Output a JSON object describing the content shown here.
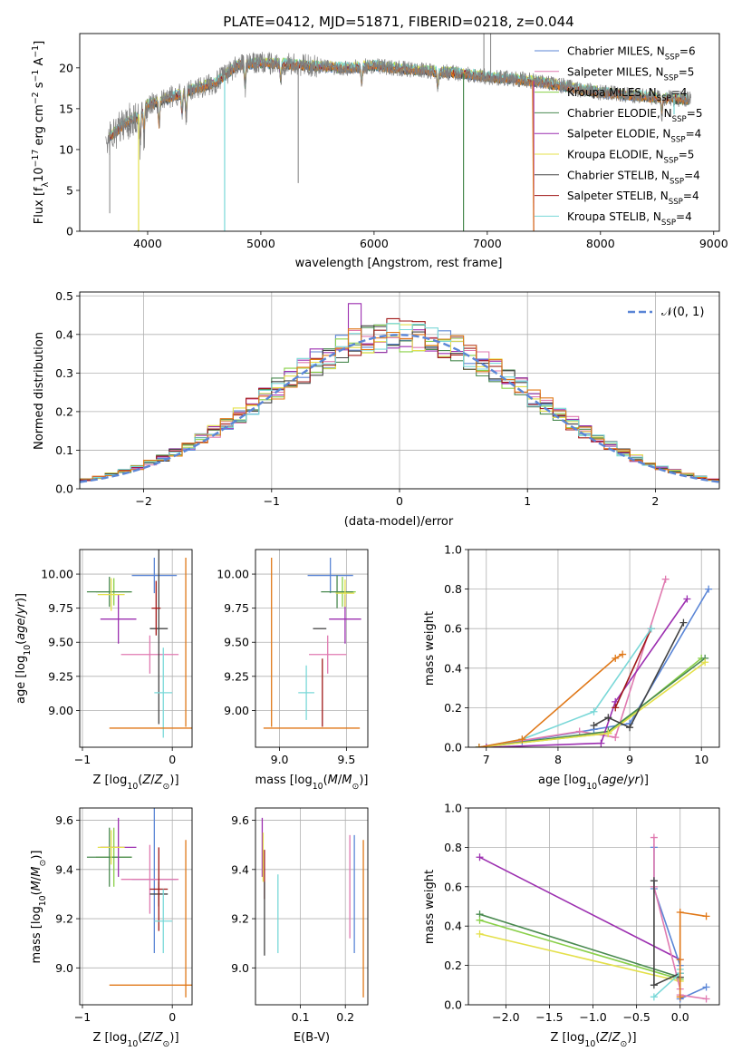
{
  "figure_title": "PLATE=0412, MJD=51871, FIBERID=0218, z=0.044",
  "colors": {
    "Chabrier MILES": "#5b86d6",
    "Salpeter MILES": "#e07ab0",
    "Kroupa MILES": "#8ad04a",
    "Chabrier ELODIE": "#4a8a50",
    "Salpeter ELODIE": "#9c2fb0",
    "Kroupa ELODIE": "#e4e04a",
    "Chabrier STELIB": "#444444",
    "Salpeter STELIB": "#a01818",
    "Kroupa STELIB": "#7ad8d8",
    "data": "#808080",
    "orange": "#e07818",
    "normal": "#5b86d6"
  },
  "chart_data": [
    {
      "id": "spectrum",
      "type": "line",
      "title": "PLATE=0412, MJD=51871, FIBERID=0218, z=0.044",
      "xlabel": "wavelength [Angstrom, rest frame]",
      "ylabel": "Flux [f_λ 10^-17 erg cm^-2 s^-1 A^-1]",
      "xlim": [
        3400,
        9050
      ],
      "ylim": [
        0,
        24.2
      ],
      "xticks": [
        4000,
        5000,
        6000,
        7000,
        8000,
        9000
      ],
      "yticks": [
        0,
        5,
        10,
        15,
        20
      ],
      "legend_position": "top-right",
      "legend": [
        {
          "base": "Chabrier MILES, N",
          "sub": "SSP",
          "tail": "=6"
        },
        {
          "base": "Salpeter MILES, N",
          "sub": "SSP",
          "tail": "=5"
        },
        {
          "base": "Kroupa MILES, N",
          "sub": "SSP",
          "tail": "=4"
        },
        {
          "base": "Chabrier ELODIE, N",
          "sub": "SSP",
          "tail": "=5"
        },
        {
          "base": "Salpeter ELODIE, N",
          "sub": "SSP",
          "tail": "=4"
        },
        {
          "base": "Kroupa ELODIE, N",
          "sub": "SSP",
          "tail": "=5"
        },
        {
          "base": "Chabrier STELIB, N",
          "sub": "SSP",
          "tail": "=4"
        },
        {
          "base": "Salpeter STELIB, N",
          "sub": "SSP",
          "tail": "=4"
        },
        {
          "base": "Kroupa STELIB, N",
          "sub": "SSP",
          "tail": "=4"
        }
      ],
      "continuum": [
        [
          3640,
          11.2
        ],
        [
          3700,
          12.0
        ],
        [
          3800,
          13.2
        ],
        [
          3900,
          14.0
        ],
        [
          4000,
          15.5
        ],
        [
          4200,
          16.4
        ],
        [
          4400,
          17.4
        ],
        [
          4600,
          18.2
        ],
        [
          4800,
          20.4
        ],
        [
          5000,
          20.6
        ],
        [
          5200,
          20.5
        ],
        [
          5500,
          20.2
        ],
        [
          5800,
          20.0
        ],
        [
          6000,
          20.3
        ],
        [
          6300,
          19.8
        ],
        [
          6500,
          19.6
        ],
        [
          6800,
          19.3
        ],
        [
          7000,
          18.9
        ],
        [
          7200,
          18.7
        ],
        [
          7400,
          18.4
        ],
        [
          7600,
          18.0
        ],
        [
          7800,
          17.4
        ],
        [
          8000,
          17.0
        ],
        [
          8300,
          16.6
        ],
        [
          8600,
          16.3
        ],
        [
          8800,
          16.1
        ]
      ],
      "absorption_lines": [
        [
          3934,
          3.5
        ],
        [
          3968,
          3.0
        ],
        [
          4101,
          3.0
        ],
        [
          4304,
          2.5
        ],
        [
          4340,
          3.0
        ],
        [
          4861,
          2.5
        ],
        [
          5175,
          2.0
        ],
        [
          5890,
          2.0
        ],
        [
          6563,
          2.0
        ],
        [
          8542,
          2.0
        ]
      ],
      "dropouts": [
        [
          3920,
          0
        ],
        [
          4680,
          0
        ],
        [
          6790,
          0
        ],
        [
          7410,
          0
        ],
        [
          8650,
          14.3
        ]
      ],
      "data_spikes": [
        [
          3665,
          2.2
        ],
        [
          5330,
          5.9
        ],
        [
          6970,
          24.2
        ],
        [
          7030,
          24.2
        ]
      ]
    },
    {
      "id": "residual_hist",
      "type": "line",
      "xlabel": "(data-model)/error",
      "ylabel": "Normed distribution",
      "xlim": [
        -2.5,
        2.5
      ],
      "ylim": [
        0,
        0.51
      ],
      "xticks": [
        -2,
        -1,
        0,
        1,
        2
      ],
      "yticks": [
        0.0,
        0.1,
        0.2,
        0.3,
        0.4,
        0.5
      ],
      "bin_width": 0.1,
      "legend_position": "top-right",
      "legend_label": "𝒩(0, 1)",
      "normal_curve": {
        "mean": 0,
        "sigma": 1
      }
    },
    {
      "id": "age_vs_Z",
      "type": "scatter",
      "xlabel": "Z [log10(Z/Z⊙)]",
      "ylabel": "age  [log10(age/yr)]",
      "xlim": [
        -1.03,
        0.22
      ],
      "ylim": [
        8.73,
        10.18
      ],
      "xticks": [
        -1,
        0
      ],
      "yticks": [
        9.0,
        9.25,
        9.5,
        9.75,
        10.0
      ],
      "points": [
        {
          "model": "Chabrier MILES",
          "x": -0.2,
          "y": 9.99,
          "xerr": 0.25,
          "yerr": 0.13
        },
        {
          "model": "Salpeter MILES",
          "x": -0.25,
          "y": 9.41,
          "xerr": 0.32,
          "yerr": 0.14
        },
        {
          "model": "Kroupa MILES",
          "x": -0.65,
          "y": 9.87,
          "xerr": 0.2,
          "yerr": 0.1
        },
        {
          "model": "Chabrier ELODIE",
          "x": -0.7,
          "y": 9.87,
          "xerr": 0.25,
          "yerr": 0.11
        },
        {
          "model": "Salpeter ELODIE",
          "x": -0.6,
          "y": 9.67,
          "xerr": 0.2,
          "yerr": 0.18
        },
        {
          "model": "Kroupa ELODIE",
          "x": -0.68,
          "y": 9.85,
          "xerr": 0.15,
          "yerr": 0.12
        },
        {
          "model": "Chabrier STELIB",
          "x": -0.15,
          "y": 9.6,
          "xerr": 0.1,
          "yerr": 0.7
        },
        {
          "model": "Salpeter STELIB",
          "x": -0.18,
          "y": 9.75,
          "xerr": 0.05,
          "yerr": 0.2
        },
        {
          "model": "Kroupa STELIB",
          "x": -0.1,
          "y": 9.13,
          "xerr": 0.1,
          "yerr": 0.33
        },
        {
          "model": "orange",
          "x": 0.15,
          "y": 8.87,
          "xerr": 0.85,
          "yerr": 0.0
        },
        {
          "model": "orange",
          "x": 0.15,
          "y": 9.5,
          "xerr": 0.0,
          "yerr": 0.62
        }
      ]
    },
    {
      "id": "age_vs_mass",
      "type": "scatter",
      "xlabel": "mass [log10(M/M⊙)]",
      "ylabel": "",
      "xlim": [
        8.82,
        9.66
      ],
      "ylim": [
        8.73,
        10.18
      ],
      "xticks": [
        9.0,
        9.5
      ],
      "yticks": [
        9.0,
        9.25,
        9.5,
        9.75,
        10.0
      ],
      "points": [
        {
          "model": "Chabrier MILES",
          "x": 9.38,
          "y": 9.99,
          "xerr": 0.17,
          "yerr": 0.13
        },
        {
          "model": "Salpeter MILES",
          "x": 9.36,
          "y": 9.41,
          "xerr": 0.14,
          "yerr": 0.14
        },
        {
          "model": "Kroupa MILES",
          "x": 9.47,
          "y": 9.87,
          "xerr": 0.1,
          "yerr": 0.11
        },
        {
          "model": "Chabrier ELODIE",
          "x": 9.43,
          "y": 9.87,
          "xerr": 0.12,
          "yerr": 0.12
        },
        {
          "model": "Salpeter ELODIE",
          "x": 9.49,
          "y": 9.67,
          "xerr": 0.12,
          "yerr": 0.18
        },
        {
          "model": "Kroupa ELODIE",
          "x": 9.49,
          "y": 9.86,
          "xerr": 0.07,
          "yerr": 0.1
        },
        {
          "model": "Chabrier STELIB",
          "x": 9.3,
          "y": 9.6,
          "xerr": 0.05,
          "yerr": 0.0
        },
        {
          "model": "Salpeter STELIB",
          "x": 9.32,
          "y": 9.13,
          "xerr": 0.0,
          "yerr": 0.25
        },
        {
          "model": "Kroupa STELIB",
          "x": 9.2,
          "y": 9.13,
          "xerr": 0.06,
          "yerr": 0.2
        },
        {
          "model": "orange",
          "x": 9.24,
          "y": 8.87,
          "xerr": 0.36,
          "yerr": 0.0
        },
        {
          "model": "orange",
          "x": 8.94,
          "y": 9.5,
          "xerr": 0.0,
          "yerr": 0.62
        }
      ]
    },
    {
      "id": "mass_weight_vs_age",
      "type": "line",
      "xlabel": "age  [log10(age/yr)]",
      "ylabel": "mass weight",
      "xlim": [
        6.75,
        10.25
      ],
      "ylim": [
        0,
        1.0
      ],
      "xticks": [
        7,
        8,
        9,
        10
      ],
      "yticks": [
        0.0,
        0.2,
        0.4,
        0.6,
        0.8,
        1.0
      ],
      "series": [
        {
          "model": "Chabrier MILES",
          "x": [
            6.9,
            7.5,
            8.5,
            9.0,
            10.1
          ],
          "y": [
            0.0,
            0.03,
            0.09,
            0.12,
            0.8
          ]
        },
        {
          "model": "Salpeter MILES",
          "x": [
            6.9,
            8.3,
            8.8,
            9.5
          ],
          "y": [
            0.0,
            0.08,
            0.05,
            0.85
          ]
        },
        {
          "model": "Kroupa MILES",
          "x": [
            6.9,
            8.7,
            10.0
          ],
          "y": [
            0.0,
            0.07,
            0.45
          ]
        },
        {
          "model": "Chabrier ELODIE",
          "x": [
            6.9,
            8.7,
            10.05
          ],
          "y": [
            0.0,
            0.08,
            0.45
          ]
        },
        {
          "model": "Salpeter ELODIE",
          "x": [
            7.0,
            8.6,
            8.8,
            9.8
          ],
          "y": [
            0.0,
            0.02,
            0.23,
            0.75
          ]
        },
        {
          "model": "Kroupa ELODIE",
          "x": [
            6.9,
            8.7,
            10.05
          ],
          "y": [
            0.0,
            0.07,
            0.43
          ]
        },
        {
          "model": "Chabrier STELIB",
          "x": [
            8.5,
            8.7,
            9.0,
            9.75
          ],
          "y": [
            0.11,
            0.15,
            0.1,
            0.63
          ]
        },
        {
          "model": "Salpeter STELIB",
          "x": [
            8.8,
            9.3
          ],
          "y": [
            0.2,
            0.6
          ]
        },
        {
          "model": "Kroupa STELIB",
          "x": [
            6.9,
            7.5,
            8.5,
            9.3
          ],
          "y": [
            0.0,
            0.04,
            0.18,
            0.6
          ]
        },
        {
          "model": "orange",
          "x": [
            6.9,
            7.5,
            8.8,
            8.9
          ],
          "y": [
            0.0,
            0.04,
            0.45,
            0.47
          ]
        }
      ]
    },
    {
      "id": "mass_vs_Z",
      "type": "scatter",
      "xlabel": "Z [log10(Z/Z⊙)]",
      "ylabel": "mass [log10(M/M⊙)]",
      "xlim": [
        -1.03,
        0.22
      ],
      "ylim": [
        8.85,
        9.65
      ],
      "xticks": [
        -1,
        0
      ],
      "yticks": [
        9.0,
        9.2,
        9.4,
        9.6
      ],
      "points": [
        {
          "model": "Chabrier MILES",
          "x": -0.2,
          "y": 9.36,
          "xerr": 0.25,
          "yerr": 0.3
        },
        {
          "model": "Salpeter MILES",
          "x": -0.25,
          "y": 9.36,
          "xerr": 0.32,
          "yerr": 0.14
        },
        {
          "model": "Kroupa MILES",
          "x": -0.65,
          "y": 9.45,
          "xerr": 0.2,
          "yerr": 0.12
        },
        {
          "model": "Chabrier ELODIE",
          "x": -0.7,
          "y": 9.45,
          "xerr": 0.25,
          "yerr": 0.12
        },
        {
          "model": "Salpeter ELODIE",
          "x": -0.6,
          "y": 9.49,
          "xerr": 0.2,
          "yerr": 0.12
        },
        {
          "model": "Kroupa ELODIE",
          "x": -0.68,
          "y": 9.49,
          "xerr": 0.15,
          "yerr": 0.07
        },
        {
          "model": "Chabrier STELIB",
          "x": -0.15,
          "y": 9.3,
          "xerr": 0.1,
          "yerr": 0.05
        },
        {
          "model": "Salpeter STELIB",
          "x": -0.15,
          "y": 9.32,
          "xerr": 0.1,
          "yerr": 0.17
        },
        {
          "model": "Kroupa STELIB",
          "x": -0.1,
          "y": 9.19,
          "xerr": 0.1,
          "yerr": 0.13
        },
        {
          "model": "orange",
          "x": 0.15,
          "y": 8.93,
          "xerr": 0.85,
          "yerr": 0.0
        },
        {
          "model": "orange",
          "x": 0.15,
          "y": 9.2,
          "xerr": 0.0,
          "yerr": 0.32
        }
      ]
    },
    {
      "id": "mass_vs_EBV",
      "type": "scatter",
      "xlabel": "E(B-V)",
      "ylabel": "",
      "xlim": [
        0.0,
        0.25
      ],
      "ylim": [
        8.85,
        9.65
      ],
      "xticks": [
        0.1,
        0.2
      ],
      "yticks": [
        9.0,
        9.2,
        9.4,
        9.6
      ],
      "points": [
        {
          "model": "Salpeter ELODIE",
          "x": 0.015,
          "y": 9.49,
          "xerr": 0.0,
          "yerr": 0.12
        },
        {
          "model": "Kroupa ELODIE",
          "x": 0.017,
          "y": 9.45,
          "xerr": 0.0,
          "yerr": 0.1
        },
        {
          "model": "Salpeter STELIB",
          "x": 0.02,
          "y": 9.38,
          "xerr": 0.0,
          "yerr": 0.1
        },
        {
          "model": "Chabrier STELIB",
          "x": 0.02,
          "y": 9.2,
          "xerr": 0.0,
          "yerr": 0.15
        },
        {
          "model": "Kroupa STELIB",
          "x": 0.05,
          "y": 9.22,
          "xerr": 0.0,
          "yerr": 0.16
        },
        {
          "model": "Salpeter MILES",
          "x": 0.21,
          "y": 9.33,
          "xerr": 0.0,
          "yerr": 0.21
        },
        {
          "model": "Chabrier MILES",
          "x": 0.22,
          "y": 9.3,
          "xerr": 0.0,
          "yerr": 0.24
        },
        {
          "model": "orange",
          "x": 0.24,
          "y": 9.2,
          "xerr": 0.0,
          "yerr": 0.32
        }
      ]
    },
    {
      "id": "mass_weight_vs_Z",
      "type": "line",
      "xlabel": "Z [log10(Z/Z⊙)]",
      "ylabel": "mass weight",
      "xlim": [
        -2.43,
        0.45
      ],
      "ylim": [
        0,
        1.0
      ],
      "xticks": [
        -2.0,
        -1.5,
        -1.0,
        -0.5,
        0.0
      ],
      "yticks": [
        0.0,
        0.2,
        0.4,
        0.6,
        0.8,
        1.0
      ],
      "series": [
        {
          "model": "Salpeter ELODIE",
          "x": [
            -2.3,
            0.0
          ],
          "y": [
            0.75,
            0.23
          ]
        },
        {
          "model": "Chabrier ELODIE",
          "x": [
            -2.3,
            0.0
          ],
          "y": [
            0.46,
            0.14
          ]
        },
        {
          "model": "Kroupa ELODIE",
          "x": [
            -2.3,
            0.0
          ],
          "y": [
            0.36,
            0.12
          ]
        },
        {
          "model": "Kroupa MILES",
          "x": [
            -2.3,
            0.0
          ],
          "y": [
            0.43,
            0.13
          ]
        },
        {
          "model": "Chabrier MILES",
          "x": [
            -0.3,
            -0.3,
            0.0,
            0.0,
            0.3
          ],
          "y": [
            0.8,
            0.59,
            0.2,
            0.03,
            0.09
          ]
        },
        {
          "model": "Salpeter MILES",
          "x": [
            -0.3,
            -0.3,
            0.0,
            0.0,
            0.3
          ],
          "y": [
            0.85,
            0.6,
            0.08,
            0.05,
            0.03
          ]
        },
        {
          "model": "Chabrier STELIB",
          "x": [
            -0.3,
            -0.3,
            0.0,
            0.0
          ],
          "y": [
            0.63,
            0.1,
            0.16,
            0.14
          ]
        },
        {
          "model": "Kroupa STELIB",
          "x": [
            -0.3,
            0.0,
            0.0
          ],
          "y": [
            0.04,
            0.16,
            0.18
          ]
        },
        {
          "model": "orange",
          "x": [
            0.0,
            0.0,
            0.0,
            0.3
          ],
          "y": [
            0.04,
            0.23,
            0.47,
            0.45
          ]
        }
      ]
    }
  ]
}
